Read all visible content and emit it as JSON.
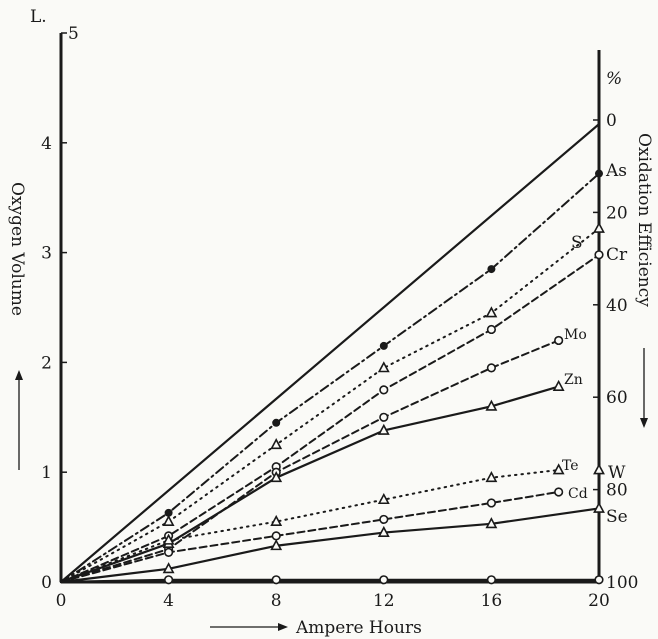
{
  "chart_data": {
    "type": "line",
    "xlabel": "Ampere Hours",
    "ylabel": "Oxygen Volume",
    "y2label": "Oxidation Efficiency",
    "y_unit": "L.",
    "y2_unit": "%",
    "x_ticks": [
      "0",
      "4",
      "8",
      "12",
      "16",
      "20"
    ],
    "y_ticks": [
      "0",
      "1",
      "2",
      "3",
      "4",
      "5"
    ],
    "y2_ticks": [
      "0",
      "20",
      "40",
      "60",
      "80",
      "100"
    ],
    "xlim": [
      0,
      20
    ],
    "ylim": [
      0,
      5
    ],
    "y2lim": [
      100,
      0
    ],
    "grid": false,
    "series": [
      {
        "name": "",
        "style": "solid",
        "marker": "none",
        "x": [
          0,
          20
        ],
        "y": [
          0,
          4.17
        ]
      },
      {
        "name": "As",
        "style": "dashdot",
        "marker": "filled-circle",
        "x": [
          0,
          4,
          8,
          12,
          16,
          20
        ],
        "y": [
          0,
          0.63,
          1.45,
          2.15,
          2.85,
          3.72
        ]
      },
      {
        "name": "S",
        "style": "dotted",
        "marker": "triangle",
        "x": [
          0,
          4,
          8,
          12,
          16,
          20
        ],
        "y": [
          0,
          0.55,
          1.25,
          1.95,
          2.45,
          3.22
        ]
      },
      {
        "name": "Cr",
        "style": "dashed",
        "marker": "open-circle",
        "x": [
          0,
          4,
          8,
          12,
          16,
          20
        ],
        "y": [
          0,
          0.42,
          1.05,
          1.75,
          2.3,
          2.98
        ]
      },
      {
        "name": "Mo",
        "style": "dashed",
        "marker": "open-circle",
        "x": [
          0,
          4,
          8,
          12,
          16,
          18.5
        ],
        "y": [
          0,
          0.3,
          1.0,
          1.5,
          1.95,
          2.2
        ]
      },
      {
        "name": "Zn",
        "style": "solid",
        "marker": "triangle",
        "x": [
          0,
          4,
          8,
          12,
          16,
          18.5
        ],
        "y": [
          0,
          0.35,
          0.95,
          1.38,
          1.6,
          1.78
        ]
      },
      {
        "name": "Te",
        "style": "dotted",
        "marker": "triangle",
        "x": [
          0,
          4,
          8,
          12,
          16,
          18.5
        ],
        "y": [
          0,
          0.38,
          0.55,
          0.75,
          0.95,
          1.02
        ]
      },
      {
        "name": "W",
        "style": "dotted",
        "marker": "triangle",
        "x": [
          20
        ],
        "y": [
          1.02
        ]
      },
      {
        "name": "Cd",
        "style": "dashed",
        "marker": "open-circle",
        "x": [
          0,
          4,
          8,
          12,
          16,
          18.5
        ],
        "y": [
          0,
          0.27,
          0.42,
          0.57,
          0.72,
          0.82
        ]
      },
      {
        "name": "Se",
        "style": "solid",
        "marker": "triangle",
        "x": [
          0,
          4,
          8,
          12,
          16,
          20
        ],
        "y": [
          0,
          0.12,
          0.33,
          0.45,
          0.53,
          0.67
        ]
      },
      {
        "name": "",
        "style": "solid",
        "marker": "open-circle",
        "x": [
          0,
          4,
          8,
          12,
          16,
          20
        ],
        "y": [
          0,
          0.02,
          0.02,
          0.02,
          0.02,
          0.02
        ]
      }
    ]
  }
}
